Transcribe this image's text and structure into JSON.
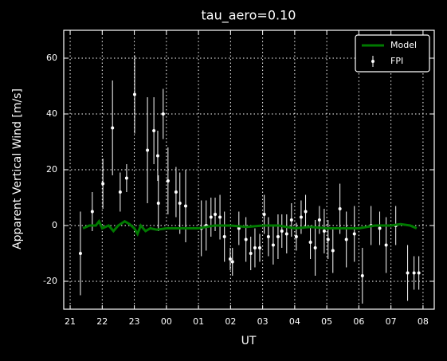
{
  "chart_data": {
    "type": "line",
    "title": "tau_aero=0.10",
    "x_label": "UT",
    "y_label": "Apparent Vertical Wind [m/s]",
    "xlim": [
      20.8,
      32.35
    ],
    "ylim": [
      -30,
      70
    ],
    "xticks": [
      21,
      22,
      23,
      {
        "value": 24,
        "label": "00"
      },
      {
        "value": 25,
        "label": "01"
      },
      {
        "value": 26,
        "label": "02"
      },
      {
        "value": 27,
        "label": "03"
      },
      {
        "value": 28,
        "label": "04"
      },
      {
        "value": 29,
        "label": "05"
      },
      {
        "value": 30,
        "label": "06"
      },
      {
        "value": 31,
        "label": "07"
      },
      {
        "value": 32,
        "label": "08"
      }
    ],
    "yticks": [
      -20,
      0,
      20,
      40,
      60
    ],
    "grid": true,
    "legend": "upper right",
    "series": [
      {
        "name": "Model",
        "style": "line",
        "color": "#007a00",
        "x": [
          21.4,
          21.6,
          21.8,
          21.9,
          22.0,
          22.2,
          22.35,
          22.5,
          22.7,
          22.85,
          23.0,
          23.1,
          23.2,
          23.35,
          23.5,
          23.7,
          24.0,
          24.5,
          25.0,
          25.5,
          26.0,
          26.5,
          27.0,
          27.5,
          28.0,
          28.5,
          29.0,
          29.5,
          30.0,
          30.5,
          31.0,
          31.3,
          31.6,
          31.8
        ],
        "values": [
          -1,
          0,
          0,
          1.5,
          -1,
          0,
          -2,
          0,
          1.5,
          0.5,
          -1,
          -3,
          0,
          -2,
          -1,
          -1.5,
          -1,
          -1,
          -1,
          0,
          0,
          -0.5,
          0,
          0,
          -1,
          -0.5,
          -1,
          -1,
          -1,
          0,
          0,
          0.5,
          0,
          -1
        ]
      },
      {
        "name": "FPI",
        "style": "errorbar",
        "color": "#ffffff",
        "x": [
          21.32,
          21.69,
          22.02,
          22.32,
          22.56,
          22.76,
          23.01,
          23.41,
          23.61,
          23.73,
          23.75,
          23.9,
          24.05,
          24.3,
          24.42,
          24.6,
          25.09,
          25.24,
          25.39,
          25.52,
          25.67,
          25.81,
          25.99,
          26.06,
          26.26,
          26.48,
          26.63,
          26.76,
          26.91,
          27.05,
          27.18,
          27.33,
          27.48,
          27.6,
          27.75,
          27.9,
          28.05,
          28.2,
          28.34,
          28.49,
          28.64,
          28.77,
          28.92,
          29.04,
          29.19,
          29.41,
          29.61,
          29.86,
          30.11,
          30.38,
          30.65,
          30.85,
          31.15,
          31.52,
          31.72,
          31.87
        ],
        "values": [
          -10,
          5,
          15,
          35,
          12,
          17,
          47,
          27,
          34,
          25,
          8,
          40,
          16,
          12,
          8,
          7,
          -1,
          0,
          3,
          4,
          3,
          -4,
          -12,
          -13,
          -1,
          -5,
          -10,
          -8,
          -8,
          4,
          -4,
          -7,
          -4,
          -2,
          -3,
          2,
          -4,
          3,
          5,
          -6,
          -8,
          2,
          -2,
          -5,
          -9,
          6,
          -5,
          -3,
          -18,
          0,
          -1,
          -7,
          0,
          -17,
          -17,
          -17
        ],
        "errors": [
          15,
          7,
          9,
          17,
          7,
          5,
          14,
          19,
          12,
          9,
          10,
          9,
          12,
          9,
          11,
          13,
          10,
          9,
          7,
          6,
          8,
          9,
          4,
          5,
          6,
          8,
          6,
          7,
          5,
          7,
          7,
          7,
          8,
          6,
          7,
          6,
          5,
          6,
          6,
          6,
          10,
          5,
          8,
          7,
          8,
          9,
          10,
          10,
          10,
          7,
          6,
          10,
          7,
          10,
          6,
          6
        ]
      }
    ]
  }
}
